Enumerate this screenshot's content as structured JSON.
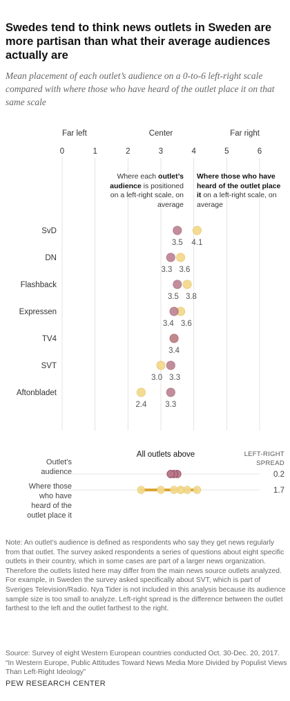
{
  "header": {
    "title": "Swedes tend to think news outlets in Sweden are more partisan than what their average audiences actually are",
    "subtitle": "Mean placement of each outlet’s audience on a 0-to-6 left-right scale compared with where those who have heard of the outlet place it on that same scale"
  },
  "annotations": {
    "audience_pre": "Where each ",
    "audience_bold": "outlet’s audience",
    "audience_post": " is positioned on a left-right scale, on average",
    "heard_bold": "Where those who have heard of the outlet place it",
    "heard_post": " on a left-right scale, on average"
  },
  "chart_data": {
    "type": "scatter",
    "xlim": [
      0,
      6
    ],
    "ticks": [
      "0",
      "1",
      "2",
      "3",
      "4",
      "5",
      "6"
    ],
    "scale_labels": {
      "left": "Far left",
      "center": "Center",
      "right": "Far right"
    },
    "colors": {
      "audience": "#b87a8a",
      "heard": "#f3d98d",
      "bar_audience": "#7a2e3e",
      "bar_heard": "#d9a432",
      "grid": "#dcdcdc"
    },
    "outlets": [
      {
        "name": "SvD",
        "audience": 3.5,
        "heard": 4.1,
        "audience_label": "3.5",
        "heard_label": "4.1"
      },
      {
        "name": "DN",
        "audience": 3.3,
        "heard": 3.6,
        "audience_label": "3.3",
        "heard_label": "3.6"
      },
      {
        "name": "Flashback",
        "audience": 3.5,
        "heard": 3.8,
        "audience_label": "3.5",
        "heard_label": "3.8"
      },
      {
        "name": "Expressen",
        "audience": 3.4,
        "heard": 3.6,
        "audience_label": "3.4",
        "heard_label": "3.6"
      },
      {
        "name": "TV4",
        "audience": 3.4,
        "heard": 3.4,
        "audience_label": "",
        "heard_label": "3.4"
      },
      {
        "name": "SVT",
        "audience": 3.3,
        "heard": 3.0,
        "audience_label": "3.3",
        "heard_label": "3.0"
      },
      {
        "name": "Aftonbladet",
        "audience": 3.3,
        "heard": 2.4,
        "audience_label": "3.3",
        "heard_label": "2.4"
      }
    ],
    "summary": {
      "title": "All outlets above",
      "spread_header": [
        "LEFT-RIGHT",
        "SPREAD"
      ],
      "rows": [
        {
          "label_lines": [
            "Outlet’s",
            "audience"
          ],
          "type": "audience",
          "spread": "0.2"
        },
        {
          "label_lines": [
            "Where those",
            "who have",
            "heard of the",
            "outlet place it"
          ],
          "type": "heard",
          "spread": "1.7"
        }
      ]
    }
  },
  "footer": {
    "note": "Note: An outlet’s audience is defined as respondents who say they get news regularly from that outlet. The survey asked respondents a series of questions about eight specific outlets in their country, which in some cases are part of a larger news organization. Therefore the outlets listed here may differ from the main news source outlets analyzed. For example, in Sweden the survey asked specifically about SVT, which is part of Sveriges Television/Radio. Nya Tider is not included in this analysis because its audience sample size is too small to analyze. Left-right spread is the difference between the outlet farthest to the left and the outlet farthest to the right.",
    "source_line1": "Source: Survey of eight Western European countries conducted Oct. 30-Dec. 20, 2017.",
    "source_line2": "“In Western Europe, Public Attitudes Toward News Media More Divided by Populist Views Than Left-Right Ideology”",
    "brand": "PEW RESEARCH CENTER"
  }
}
